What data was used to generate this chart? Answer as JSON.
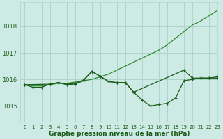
{
  "bg_color": "#ceeae4",
  "grid_color": "#aed4cc",
  "line_dark_color": "#1a5c1a",
  "line_mid_color": "#1a5c1a",
  "line_light_color": "#2e8b2e",
  "xlabel": "Graphe pression niveau de la mer (hPa)",
  "xlim": [
    -0.5,
    23
  ],
  "ylim": [
    1014.4,
    1018.9
  ],
  "yticks": [
    1015,
    1016,
    1017,
    1018
  ],
  "xticks": [
    0,
    1,
    2,
    3,
    4,
    5,
    6,
    7,
    8,
    9,
    10,
    11,
    12,
    13,
    14,
    15,
    16,
    17,
    18,
    19,
    20,
    21,
    22,
    23
  ],
  "rising_x": [
    0,
    1,
    2,
    3,
    4,
    5,
    6,
    7,
    8,
    9,
    10,
    11,
    12,
    13,
    14,
    15,
    16,
    17,
    18,
    19,
    20,
    21,
    22,
    23
  ],
  "rising_y": [
    1015.8,
    1015.75,
    1015.75,
    1015.8,
    1015.85,
    1015.85,
    1015.9,
    1015.95,
    1016.0,
    1016.1,
    1016.2,
    1016.35,
    1016.5,
    1016.65,
    1016.8,
    1016.95,
    1017.1,
    1017.3,
    1017.55,
    1017.8,
    1018.05,
    1018.2,
    1018.4,
    1018.6
  ],
  "dip_x": [
    0,
    1,
    2,
    3,
    4,
    5,
    6,
    7,
    8,
    9,
    10,
    11,
    12,
    13,
    14,
    15,
    16,
    17,
    18,
    19,
    20,
    21,
    22,
    23
  ],
  "dip_y": [
    1015.8,
    1015.7,
    1015.7,
    1015.82,
    1015.88,
    1015.8,
    1015.82,
    1015.95,
    1016.3,
    1016.12,
    1015.92,
    1015.88,
    1015.88,
    1015.52,
    1015.22,
    1015.0,
    1015.05,
    1015.1,
    1015.3,
    1015.95,
    1016.0,
    1016.05,
    1016.05,
    1016.1
  ],
  "flat_x": [
    0,
    3,
    4,
    5,
    6,
    7,
    8,
    9,
    10,
    11,
    12,
    13,
    19,
    20,
    21,
    22,
    23
  ],
  "flat_y": [
    1015.8,
    1015.82,
    1015.88,
    1015.82,
    1015.85,
    1015.98,
    1016.3,
    1016.12,
    1015.92,
    1015.88,
    1015.88,
    1015.52,
    1016.35,
    1016.05,
    1016.05,
    1016.05,
    1016.05
  ]
}
